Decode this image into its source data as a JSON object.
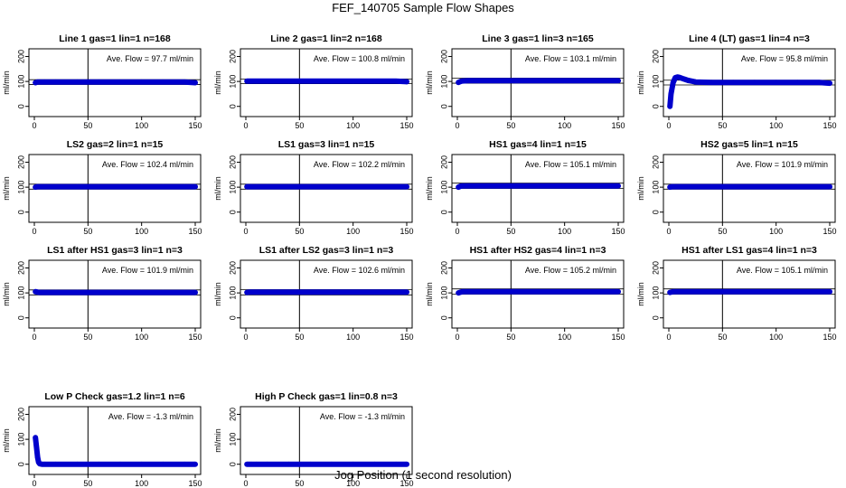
{
  "page": {
    "title": "FEF_140705  Sample Flow Shapes",
    "xlabel": "Jog Position (1 second resolution)"
  },
  "chart_data": [
    {
      "type": "scatter",
      "title": "Line 1 gas=1 lin=1 n=168",
      "annotation": "Ave. Flow = 97.7  ml/min",
      "ylabel": "ml/min",
      "xlim": [
        0,
        150
      ],
      "ylim": [
        -30,
        220
      ],
      "xticks": [
        0,
        50,
        100,
        150
      ],
      "yticks": [
        0,
        100,
        200
      ],
      "vline": 50,
      "hlines": [
        88,
        107
      ],
      "color": "#0000cc",
      "x": [
        1,
        3,
        5,
        10,
        20,
        40,
        60,
        80,
        100,
        120,
        140,
        150
      ],
      "y": [
        95,
        98,
        98,
        98,
        98,
        98,
        98,
        98,
        98,
        98,
        98,
        95
      ]
    },
    {
      "type": "scatter",
      "title": "Line 2 gas=1 lin=2 n=168",
      "annotation": "Ave. Flow = 100.8  ml/min",
      "ylabel": "ml/min",
      "xlim": [
        0,
        150
      ],
      "ylim": [
        -30,
        220
      ],
      "xticks": [
        0,
        50,
        100,
        150
      ],
      "yticks": [
        0,
        100,
        200
      ],
      "vline": 50,
      "hlines": [
        91,
        110
      ],
      "color": "#0000cc",
      "x": [
        1,
        3,
        5,
        10,
        20,
        40,
        60,
        80,
        100,
        120,
        140,
        150
      ],
      "y": [
        101,
        101,
        101,
        101,
        101,
        101,
        101,
        101,
        101,
        101,
        101,
        99
      ]
    },
    {
      "type": "scatter",
      "title": "Line 3 gas=1 lin=3 n=165",
      "annotation": "Ave. Flow = 103.1  ml/min",
      "ylabel": "ml/min",
      "xlim": [
        0,
        150
      ],
      "ylim": [
        -30,
        220
      ],
      "xticks": [
        0,
        50,
        100,
        150
      ],
      "yticks": [
        0,
        100,
        200
      ],
      "vline": 50,
      "hlines": [
        93,
        113
      ],
      "color": "#0000cc",
      "x": [
        1,
        3,
        5,
        10,
        20,
        40,
        60,
        80,
        100,
        120,
        140,
        150
      ],
      "y": [
        96,
        100,
        102,
        103,
        103,
        103,
        103,
        103,
        103,
        103,
        103,
        103
      ]
    },
    {
      "type": "scatter",
      "title": "Line 4 (LT) gas=1 lin=4 n=3",
      "annotation": "Ave. Flow = 95.8  ml/min",
      "ylabel": "ml/min",
      "xlim": [
        0,
        150
      ],
      "ylim": [
        -30,
        220
      ],
      "xticks": [
        0,
        50,
        100,
        150
      ],
      "yticks": [
        0,
        100,
        200
      ],
      "vline": 50,
      "hlines": [
        86,
        105
      ],
      "color": "#0000cc",
      "x": [
        1,
        2,
        4,
        6,
        8,
        10,
        14,
        18,
        25,
        40,
        60,
        80,
        100,
        120,
        140,
        150
      ],
      "y": [
        0,
        50,
        95,
        115,
        118,
        116,
        110,
        104,
        98,
        96,
        96,
        96,
        96,
        96,
        96,
        93
      ]
    },
    {
      "type": "scatter",
      "title": "LS2 gas=2 lin=1 n=15",
      "annotation": "Ave. Flow = 102.4  ml/min",
      "ylabel": "ml/min",
      "xlim": [
        0,
        150
      ],
      "ylim": [
        -30,
        220
      ],
      "xticks": [
        0,
        50,
        100,
        150
      ],
      "yticks": [
        0,
        100,
        200
      ],
      "vline": 50,
      "hlines": [
        92,
        112
      ],
      "color": "#0000cc",
      "x": [
        1,
        3,
        5,
        10,
        20,
        40,
        60,
        80,
        100,
        120,
        140,
        150
      ],
      "y": [
        100,
        102,
        102,
        102,
        102,
        102,
        102,
        102,
        102,
        102,
        102,
        102
      ]
    },
    {
      "type": "scatter",
      "title": "LS1 gas=3 lin=1 n=15",
      "annotation": "Ave. Flow = 102.2  ml/min",
      "ylabel": "ml/min",
      "xlim": [
        0,
        150
      ],
      "ylim": [
        -30,
        220
      ],
      "xticks": [
        0,
        50,
        100,
        150
      ],
      "yticks": [
        0,
        100,
        200
      ],
      "vline": 50,
      "hlines": [
        92,
        112
      ],
      "color": "#0000cc",
      "x": [
        1,
        3,
        5,
        10,
        20,
        40,
        60,
        80,
        100,
        120,
        140,
        150
      ],
      "y": [
        102,
        102,
        102,
        102,
        102,
        102,
        102,
        102,
        102,
        102,
        102,
        102
      ]
    },
    {
      "type": "scatter",
      "title": "HS1 gas=4 lin=1 n=15",
      "annotation": "Ave. Flow = 105.1  ml/min",
      "ylabel": "ml/min",
      "xlim": [
        0,
        150
      ],
      "ylim": [
        -30,
        220
      ],
      "xticks": [
        0,
        50,
        100,
        150
      ],
      "yticks": [
        0,
        100,
        200
      ],
      "vline": 50,
      "hlines": [
        95,
        116
      ],
      "color": "#0000cc",
      "x": [
        1,
        3,
        5,
        10,
        20,
        40,
        60,
        80,
        100,
        120,
        140,
        150
      ],
      "y": [
        100,
        104,
        105,
        105,
        105,
        105,
        105,
        105,
        105,
        105,
        105,
        105
      ]
    },
    {
      "type": "scatter",
      "title": "HS2 gas=5 lin=1 n=15",
      "annotation": "Ave. Flow = 101.9  ml/min",
      "ylabel": "ml/min",
      "xlim": [
        0,
        150
      ],
      "ylim": [
        -30,
        220
      ],
      "xticks": [
        0,
        50,
        100,
        150
      ],
      "yticks": [
        0,
        100,
        200
      ],
      "vline": 50,
      "hlines": [
        92,
        112
      ],
      "color": "#0000cc",
      "x": [
        1,
        3,
        5,
        10,
        20,
        40,
        60,
        80,
        100,
        120,
        140,
        150
      ],
      "y": [
        100,
        102,
        102,
        102,
        102,
        102,
        102,
        102,
        102,
        102,
        102,
        102
      ]
    },
    {
      "type": "scatter",
      "title": "LS1 after HS1 gas=3 lin=1 n=3",
      "annotation": "Ave. Flow = 101.9  ml/min",
      "ylabel": "ml/min",
      "xlim": [
        0,
        150
      ],
      "ylim": [
        -30,
        220
      ],
      "xticks": [
        0,
        50,
        100,
        150
      ],
      "yticks": [
        0,
        100,
        200
      ],
      "vline": 50,
      "hlines": [
        92,
        112
      ],
      "color": "#0000cc",
      "x": [
        1,
        3,
        5,
        10,
        20,
        40,
        60,
        80,
        100,
        120,
        140,
        150
      ],
      "y": [
        105,
        103,
        102,
        102,
        102,
        102,
        102,
        102,
        102,
        102,
        102,
        102
      ]
    },
    {
      "type": "scatter",
      "title": "LS1 after LS2 gas=3 lin=1 n=3",
      "annotation": "Ave. Flow = 102.6  ml/min",
      "ylabel": "ml/min",
      "xlim": [
        0,
        150
      ],
      "ylim": [
        -30,
        220
      ],
      "xticks": [
        0,
        50,
        100,
        150
      ],
      "yticks": [
        0,
        100,
        200
      ],
      "vline": 50,
      "hlines": [
        92,
        113
      ],
      "color": "#0000cc",
      "x": [
        1,
        3,
        5,
        10,
        20,
        40,
        60,
        80,
        100,
        120,
        140,
        150
      ],
      "y": [
        102,
        103,
        103,
        103,
        103,
        103,
        103,
        103,
        103,
        103,
        103,
        103
      ]
    },
    {
      "type": "scatter",
      "title": "HS1 after HS2 gas=4 lin=1 n=3",
      "annotation": "Ave. Flow = 105.2  ml/min",
      "ylabel": "ml/min",
      "xlim": [
        0,
        150
      ],
      "ylim": [
        -30,
        220
      ],
      "xticks": [
        0,
        50,
        100,
        150
      ],
      "yticks": [
        0,
        100,
        200
      ],
      "vline": 50,
      "hlines": [
        95,
        116
      ],
      "color": "#0000cc",
      "x": [
        1,
        3,
        5,
        10,
        20,
        40,
        60,
        80,
        100,
        120,
        140,
        150
      ],
      "y": [
        100,
        103,
        105,
        105,
        105,
        105,
        105,
        105,
        105,
        105,
        105,
        105
      ]
    },
    {
      "type": "scatter",
      "title": "HS1 after LS1 gas=4 lin=1 n=3",
      "annotation": "Ave. Flow = 105.1  ml/min",
      "ylabel": "ml/min",
      "xlim": [
        0,
        150
      ],
      "ylim": [
        -30,
        220
      ],
      "xticks": [
        0,
        50,
        100,
        150
      ],
      "yticks": [
        0,
        100,
        200
      ],
      "vline": 50,
      "hlines": [
        95,
        116
      ],
      "color": "#0000cc",
      "x": [
        1,
        3,
        5,
        10,
        20,
        40,
        60,
        80,
        100,
        120,
        140,
        150
      ],
      "y": [
        102,
        104,
        105,
        105,
        105,
        105,
        105,
        105,
        105,
        105,
        105,
        105
      ]
    },
    {
      "type": "scatter",
      "title": "Low P Check gas=1.2 lin=1 n=6",
      "annotation": "Ave. Flow = -1.3  ml/min",
      "ylabel": "ml/min",
      "xlim": [
        0,
        150
      ],
      "ylim": [
        -30,
        220
      ],
      "xticks": [
        0,
        50,
        100,
        150
      ],
      "yticks": [
        0,
        100,
        200
      ],
      "vline": 50,
      "hlines": [],
      "color": "#0000cc",
      "x": [
        1,
        2,
        3,
        4,
        5,
        7,
        10,
        20,
        40,
        60,
        80,
        100,
        120,
        140,
        150
      ],
      "y": [
        107,
        68,
        28,
        8,
        2,
        0,
        0,
        0,
        0,
        0,
        0,
        0,
        0,
        0,
        0
      ]
    },
    {
      "type": "scatter",
      "title": "High P Check gas=1 lin=0.8 n=3",
      "annotation": "Ave. Flow = -1.3  ml/min",
      "ylabel": "ml/min",
      "xlim": [
        0,
        150
      ],
      "ylim": [
        -30,
        220
      ],
      "xticks": [
        0,
        50,
        100,
        150
      ],
      "yticks": [
        0,
        100,
        200
      ],
      "vline": 50,
      "hlines": [],
      "color": "#0000cc",
      "x": [
        1,
        3,
        5,
        10,
        20,
        40,
        60,
        80,
        100,
        120,
        140,
        150
      ],
      "y": [
        0,
        0,
        0,
        0,
        0,
        0,
        0,
        0,
        0,
        0,
        0,
        0
      ]
    }
  ]
}
